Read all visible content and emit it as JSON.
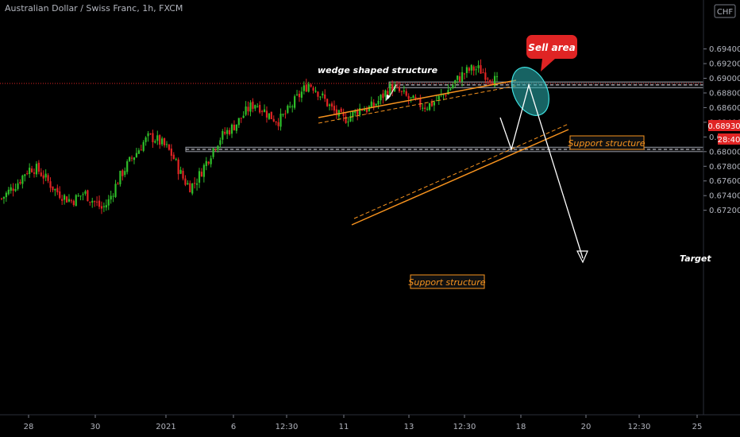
{
  "header": {
    "title": "Australian Dollar / Swiss Franc, 1h, FXCM",
    "currency": "CHF"
  },
  "colors": {
    "background": "#000000",
    "bull": "#2fbf2a",
    "bear": "#e02424",
    "wedge": "#f7931e",
    "price_line": "#e02424",
    "ellipse": "#2ab5b5",
    "sell_badge": "#e02424"
  },
  "price_tags": {
    "current": "0.68930",
    "countdown": "28:40"
  },
  "annotations": {
    "wedge_label": "wedge shaped structure",
    "sell_label": "Sell area",
    "support_upper": "Support structure",
    "support_lower": "Support structure",
    "target": "Target"
  },
  "chart_data": {
    "type": "candlestick",
    "title": "Australian Dollar / Swiss Franc, 1h, FXCM",
    "ylim": [
      0.671,
      0.697
    ],
    "y_ticks": [
      "0.69400",
      "0.69200",
      "0.69000",
      "0.68800",
      "0.68600",
      "0.68400",
      "0.68200",
      "0.68000",
      "0.67800",
      "0.67600",
      "0.67400",
      "0.67200"
    ],
    "x_ticks": [
      "28",
      "30",
      "2021",
      "6",
      "12:30",
      "11",
      "13",
      "12:30",
      "18",
      "20",
      "12:30",
      "25"
    ],
    "current_price": 0.6893,
    "support_zones": [
      [
        0.6887,
        0.6895
      ],
      [
        0.68,
        0.6806
      ]
    ],
    "price_path": [
      0.6736,
      0.6744,
      0.6752,
      0.676,
      0.6772,
      0.6778,
      0.6776,
      0.6768,
      0.6758,
      0.6748,
      0.6742,
      0.6736,
      0.6733,
      0.6738,
      0.6744,
      0.6736,
      0.673,
      0.6722,
      0.673,
      0.6748,
      0.6765,
      0.6778,
      0.679,
      0.68,
      0.6812,
      0.682,
      0.6818,
      0.6812,
      0.6805,
      0.6794,
      0.6776,
      0.676,
      0.6752,
      0.676,
      0.6775,
      0.679,
      0.6806,
      0.6818,
      0.6826,
      0.6832,
      0.684,
      0.685,
      0.686,
      0.6866,
      0.686,
      0.6852,
      0.6846,
      0.6842,
      0.685,
      0.686,
      0.6872,
      0.6882,
      0.6893,
      0.6888,
      0.6878,
      0.6868,
      0.6858,
      0.685,
      0.6844,
      0.6848,
      0.6854,
      0.686,
      0.6858,
      0.6862,
      0.687,
      0.688,
      0.6888,
      0.6884,
      0.6878,
      0.6872,
      0.6868,
      0.6864,
      0.6862,
      0.6866,
      0.6872,
      0.6878,
      0.6886,
      0.6896,
      0.6904,
      0.691,
      0.6913,
      0.6912,
      0.6906,
      0.69,
      0.6895
    ],
    "projection": [
      0.6893,
      0.688,
      0.6918,
      0.6806
    ]
  }
}
